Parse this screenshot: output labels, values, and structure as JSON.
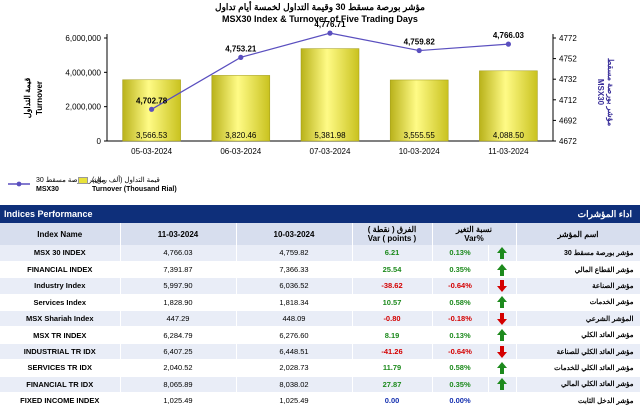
{
  "chart": {
    "title_ar": "مؤشر بورصة مسقط 30 وقيمة التداول لخمسة أيام تداول",
    "title_en": "MSX30 Index & Turnover of Five Trading Days",
    "left_axis_ar": "قيمة التداول",
    "left_axis_en": "Turnover",
    "right_axis_ar": "مؤشر بورصة مسقط",
    "right_axis_en": "MSX30",
    "legend_index_ar": "مؤشر بورصة مسقط 30",
    "legend_index_en": "MSX30",
    "legend_turnover_ar": "قيمة التداول (ألف ريال)",
    "legend_turnover_en": "Turnover (Thousand Rial)",
    "bar_color": "#e8e23a",
    "line_color": "#5a4fbf"
  },
  "chart_data": {
    "type": "bar",
    "categories": [
      "05-03-2024",
      "06-03-2024",
      "07-03-2024",
      "10-03-2024",
      "11-03-2024"
    ],
    "series": [
      {
        "name": "Turnover (Thousand Rial)",
        "axis": "left",
        "type": "bar",
        "values": [
          3566.53,
          3820.46,
          5381.98,
          3555.55,
          4088.5
        ],
        "labels": [
          "3,566.53",
          "3,820.46",
          "5,381.98",
          "3,555.55",
          "4,088.50"
        ]
      },
      {
        "name": "MSX30",
        "axis": "right",
        "type": "line",
        "values": [
          4702.78,
          4753.21,
          4776.71,
          4759.82,
          4766.03
        ],
        "labels": [
          "4,702.78",
          "4,753.21",
          "4,776.71",
          "4,759.82",
          "4,766.03"
        ]
      }
    ],
    "left_ylim": [
      0,
      6000000
    ],
    "left_ticks": [
      "0",
      "2,000,000",
      "4,000,000",
      "6,000,000"
    ],
    "right_ylim": [
      4672,
      4772
    ],
    "right_ticks": [
      "4672",
      "4692",
      "4712",
      "4732",
      "4752",
      "4772"
    ],
    "legend_position": "bottom-left"
  },
  "table": {
    "title_en": "Indices Performance",
    "title_ar": "اداء المؤشرات",
    "headers": {
      "index_name": "Index Name",
      "date1": "11-03-2024",
      "date2": "10-03-2024",
      "var_points": "الفرق ( نقطة )\nVar ( points )",
      "var_pct": "نسبة التغير\nVar%",
      "name_ar": "اسم المؤشر"
    },
    "rows": [
      {
        "name": "MSX 30 INDEX",
        "v1": "4,766.03",
        "v2": "4,759.82",
        "pts": "6.21",
        "pct": "0.13%",
        "dir": "up",
        "name_ar": "مؤشر بورصة مسقط 30"
      },
      {
        "name": "FINANCIAL INDEX",
        "v1": "7,391.87",
        "v2": "7,366.33",
        "pts": "25.54",
        "pct": "0.35%",
        "dir": "up",
        "name_ar": "مؤشر القطاع المالي"
      },
      {
        "name": "Industry Index",
        "v1": "5,997.90",
        "v2": "6,036.52",
        "pts": "-38.62",
        "pct": "-0.64%",
        "dir": "down",
        "name_ar": "مؤشر الصناعة"
      },
      {
        "name": "Services Index",
        "v1": "1,828.90",
        "v2": "1,818.34",
        "pts": "10.57",
        "pct": "0.58%",
        "dir": "up",
        "name_ar": "مؤشر الخدمات"
      },
      {
        "name": "MSX Shariah Index",
        "v1": "447.29",
        "v2": "448.09",
        "pts": "-0.80",
        "pct": "-0.18%",
        "dir": "down",
        "name_ar": "المؤشر الشرعي"
      },
      {
        "name": "MSX TR INDEX",
        "v1": "6,284.79",
        "v2": "6,276.60",
        "pts": "8.19",
        "pct": "0.13%",
        "dir": "up",
        "name_ar": "مؤشر العائد الكلي"
      },
      {
        "name": "INDUSTRIAL TR IDX",
        "v1": "6,407.25",
        "v2": "6,448.51",
        "pts": "-41.26",
        "pct": "-0.64%",
        "dir": "down",
        "name_ar": "مؤشر العائد الكلي للصناعة"
      },
      {
        "name": "SERVICES TR IDX",
        "v1": "2,040.52",
        "v2": "2,028.73",
        "pts": "11.79",
        "pct": "0.58%",
        "dir": "up",
        "name_ar": "مؤشر العائد الكلي للخدمات"
      },
      {
        "name": "FINANCIAL TR IDX",
        "v1": "8,065.89",
        "v2": "8,038.02",
        "pts": "27.87",
        "pct": "0.35%",
        "dir": "up",
        "name_ar": "مؤشر العائد الكلي المالي"
      },
      {
        "name": "FIXED INCOME INDEX",
        "v1": "1,025.49",
        "v2": "1,025.49",
        "pts": "0.00",
        "pct": "0.00%",
        "dir": "flat",
        "name_ar": "مؤشر الدخل الثابت"
      }
    ],
    "colors": {
      "header_bg": "#0e2f7a",
      "pos": "#1d8a1d",
      "neg": "#d40000",
      "zero": "#1530b0"
    }
  }
}
